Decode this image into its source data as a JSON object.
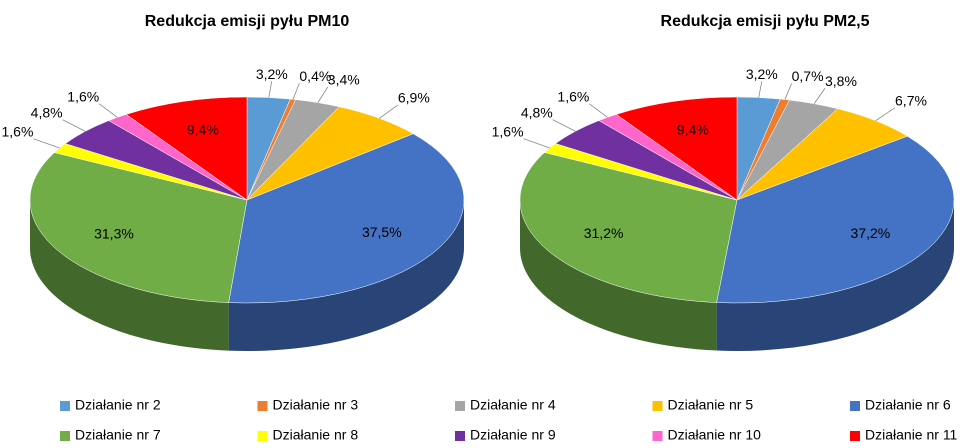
{
  "chart_data": [
    {
      "type": "pie",
      "title": "Redukcja emisji pyłu PM10",
      "categories": [
        "Działanie nr 2",
        "Działanie nr 3",
        "Działanie nr 4",
        "Działanie nr 5",
        "Działanie nr 6",
        "Działanie nr 7",
        "Działanie nr 8",
        "Działanie nr 9",
        "Działanie nr 10",
        "Działanie nr 11"
      ],
      "values": [
        3.2,
        0.4,
        3.4,
        6.9,
        37.5,
        31.3,
        1.6,
        4.8,
        1.6,
        9.4
      ],
      "value_labels": [
        "3,2%",
        "0,4%",
        "3,4%",
        "6,9%",
        "37,5%",
        "31,3%",
        "1,6%",
        "4,8%",
        "1,6%",
        "9,4%"
      ],
      "colors": [
        "#5b9bd5",
        "#ed7d31",
        "#a5a5a5",
        "#ffc000",
        "#4472c4",
        "#70ad47",
        "#ffff00",
        "#7030a0",
        "#ff66cc",
        "#ff0000"
      ],
      "legend": "bottom"
    },
    {
      "type": "pie",
      "title": "Redukcja emisji pyłu PM2,5",
      "categories": [
        "Działanie nr 2",
        "Działanie nr 3",
        "Działanie nr 4",
        "Działanie nr 5",
        "Działanie nr 6",
        "Działanie nr 7",
        "Działanie nr 8",
        "Działanie nr 9",
        "Działanie nr 10",
        "Działanie nr 11"
      ],
      "values": [
        3.2,
        0.7,
        3.8,
        6.7,
        37.2,
        31.2,
        1.6,
        4.8,
        1.6,
        9.4
      ],
      "value_labels": [
        "3,2%",
        "0,7%",
        "3,8%",
        "6,7%",
        "37,2%",
        "31,2%",
        "1,6%",
        "4,8%",
        "1,6%",
        "9,4%"
      ],
      "colors": [
        "#5b9bd5",
        "#ed7d31",
        "#a5a5a5",
        "#ffc000",
        "#4472c4",
        "#70ad47",
        "#ffff00",
        "#7030a0",
        "#ff66cc",
        "#ff0000"
      ],
      "legend": "bottom"
    }
  ]
}
